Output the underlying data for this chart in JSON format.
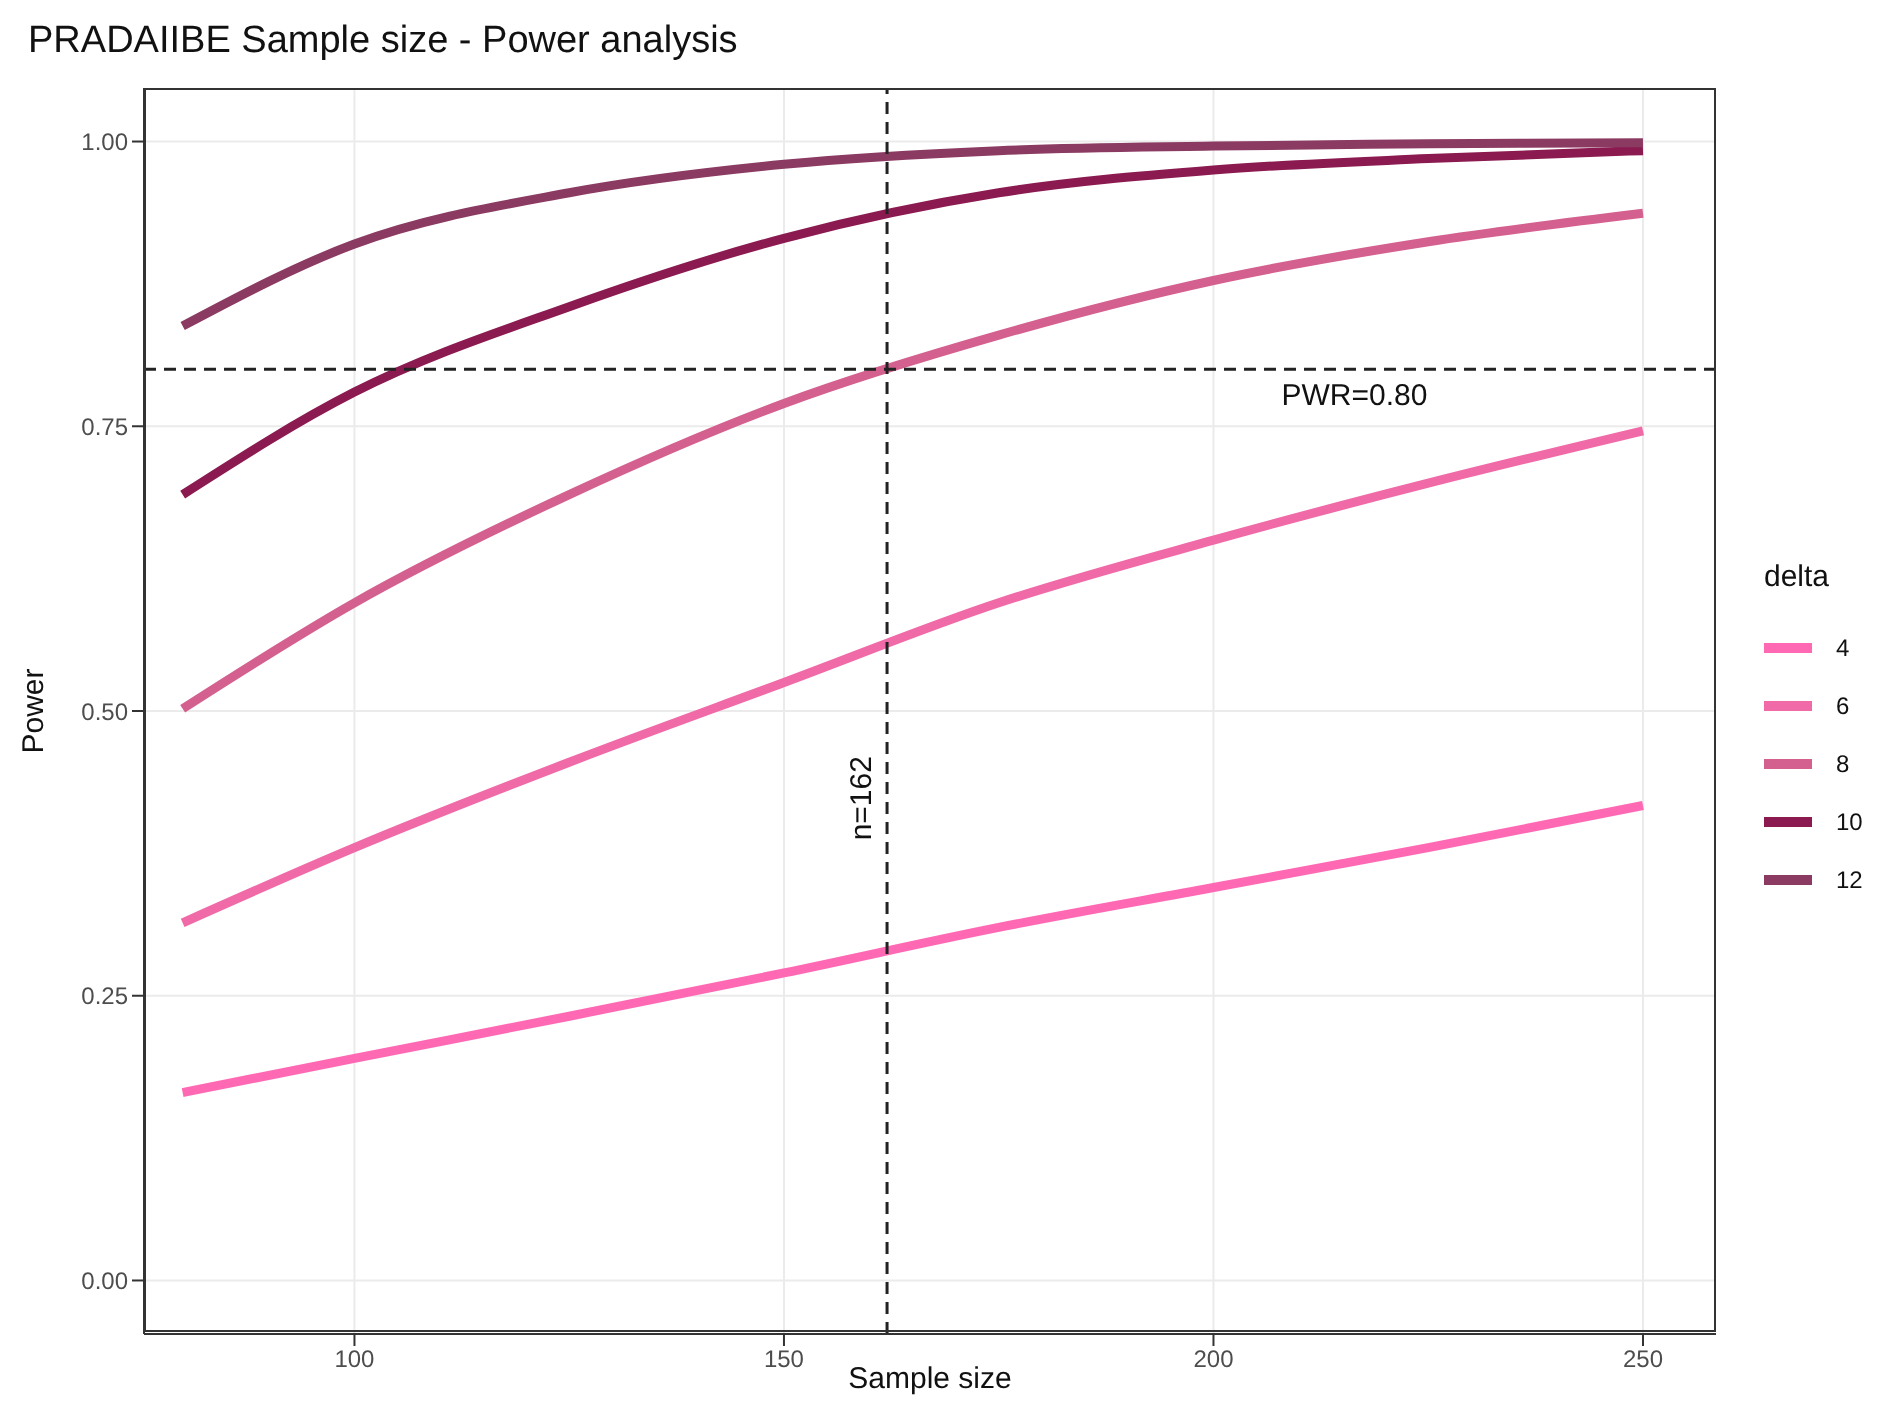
{
  "chart_data": {
    "type": "line",
    "title": "PRADAIIBE Sample size - Power analysis",
    "xlabel": "Sample size",
    "ylabel": "Power",
    "legend_title": "delta",
    "x": [
      80,
      100,
      125,
      150,
      175,
      200,
      225,
      250
    ],
    "series": [
      {
        "name": "4",
        "color": "#ff69b4",
        "values": [
          0.165,
          0.195,
          0.232,
          0.27,
          0.31,
          0.345,
          0.38,
          0.417
        ]
      },
      {
        "name": "6",
        "color": "#f06aa8",
        "values": [
          0.314,
          0.38,
          0.455,
          0.525,
          0.595,
          0.65,
          0.7,
          0.746
        ]
      },
      {
        "name": "8",
        "color": "#d4608f",
        "values": [
          0.502,
          0.595,
          0.69,
          0.77,
          0.83,
          0.878,
          0.912,
          0.937
        ]
      },
      {
        "name": "10",
        "color": "#8b1a50",
        "values": [
          0.69,
          0.78,
          0.855,
          0.915,
          0.955,
          0.975,
          0.985,
          0.992
        ]
      },
      {
        "name": "12",
        "color": "#8b3a62",
        "values": [
          0.838,
          0.91,
          0.955,
          0.98,
          0.992,
          0.996,
          0.998,
          0.999
        ]
      }
    ],
    "xlim": [
      75.5,
      258.5
    ],
    "xticks": [
      100,
      150,
      200,
      250
    ],
    "ylim": [
      -0.047,
      1.047
    ],
    "yticks": [
      {
        "value": 0,
        "label": "0.00"
      },
      {
        "value": 0.25,
        "label": "0.25"
      },
      {
        "value": 0.5,
        "label": "0.50"
      },
      {
        "value": 0.75,
        "label": "0.75"
      },
      {
        "value": 1,
        "label": "1.00"
      }
    ],
    "ref_lines": [
      {
        "axis": "y",
        "value": 0.8,
        "label": "PWR=0.80",
        "color": "#222222",
        "line_style": "dashed"
      },
      {
        "axis": "x",
        "value": 162,
        "label": "n=162",
        "color": "#222222",
        "line_style": "dashed"
      }
    ],
    "grid": true,
    "legend": "right",
    "marker": "none",
    "line_style": "solid"
  }
}
